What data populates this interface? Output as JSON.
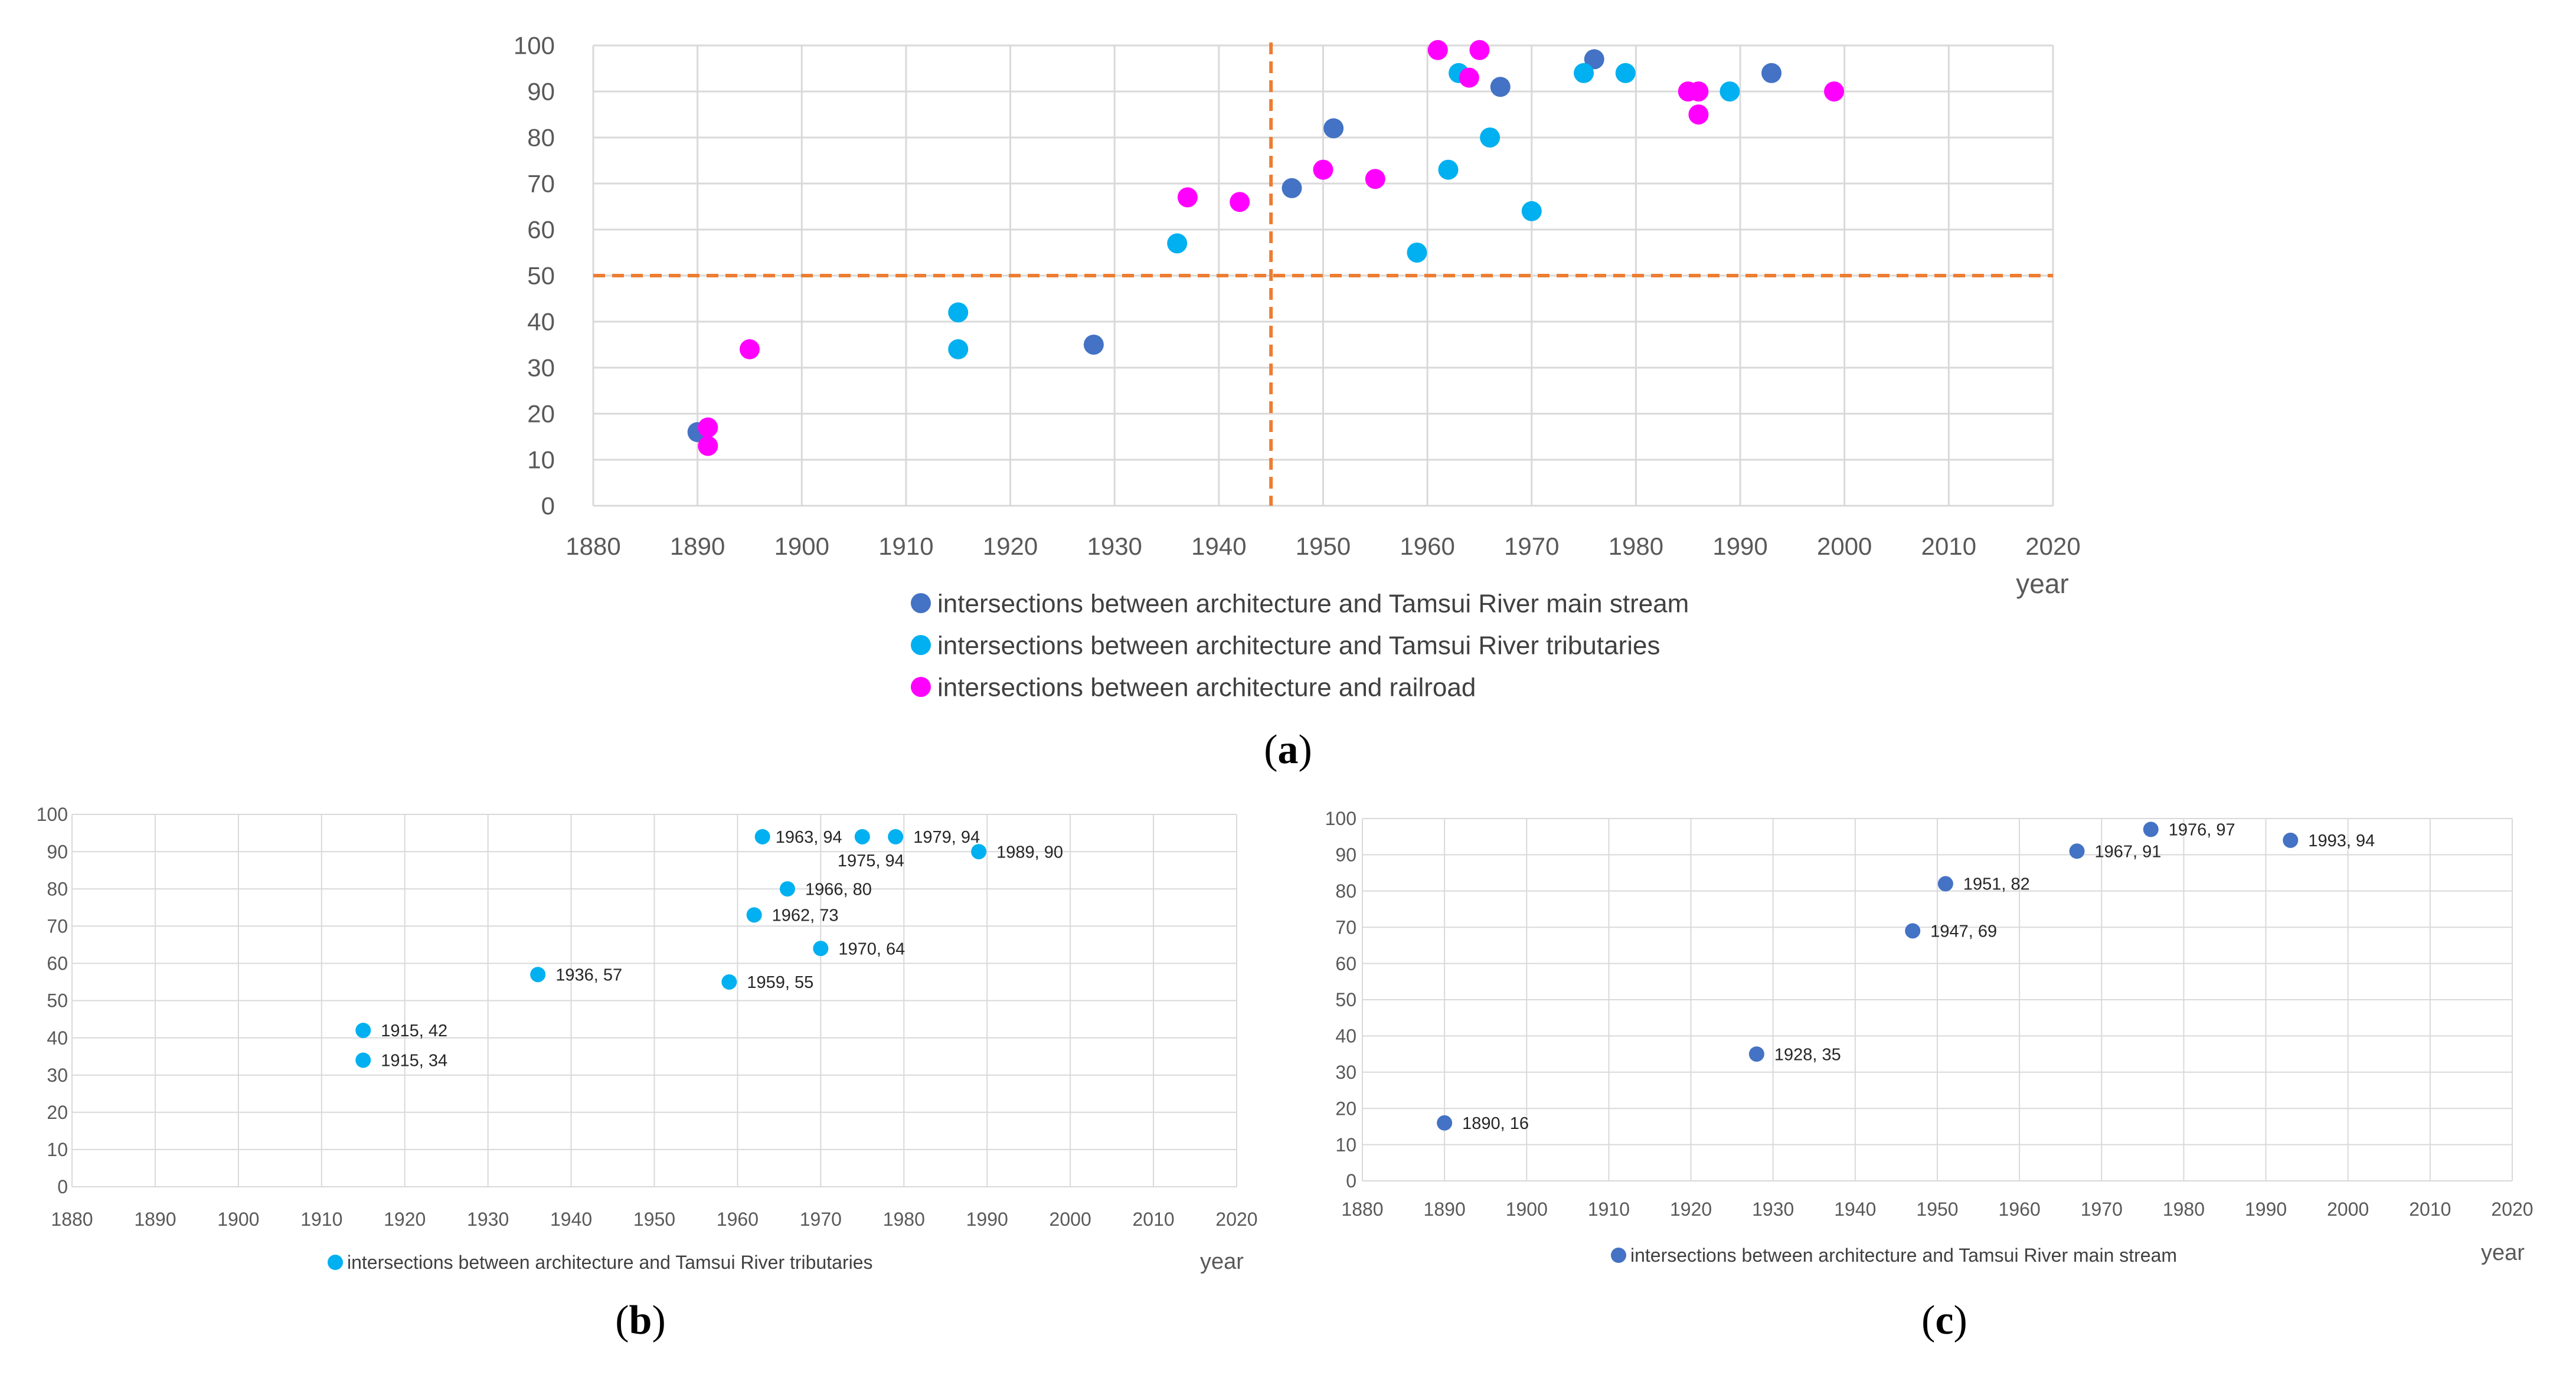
{
  "figure": {
    "charts": {
      "a": {
        "caption_letter": "a"
      },
      "b": {
        "caption_letter": "b"
      },
      "c": {
        "caption_letter": "c"
      }
    }
  },
  "chart_data": [
    {
      "id": "a",
      "type": "scatter",
      "xlim": [
        1880,
        2020
      ],
      "ylim": [
        0,
        100
      ],
      "xticks": [
        "1880",
        "1890",
        "1900",
        "1910",
        "1920",
        "1930",
        "1940",
        "1950",
        "1960",
        "1970",
        "1980",
        "1990",
        "2000",
        "2010",
        "2020"
      ],
      "yticks": [
        "0",
        "10",
        "20",
        "30",
        "40",
        "50",
        "60",
        "70",
        "80",
        "90",
        "100"
      ],
      "xlabel": "year",
      "grid": true,
      "legend_position": "bottom",
      "reference_lines": {
        "x": 1945,
        "y": 50,
        "color": "#ED7D31",
        "style": "dashed"
      },
      "series": [
        {
          "name": "intersections between architecture and Tamsui River main stream",
          "color": "#4472C4",
          "points": [
            [
              1890,
              16
            ],
            [
              1928,
              35
            ],
            [
              1947,
              69
            ],
            [
              1951,
              82
            ],
            [
              1967,
              91
            ],
            [
              1976,
              97
            ],
            [
              1993,
              94
            ]
          ]
        },
        {
          "name": "intersections between architecture and Tamsui River tributaries",
          "color": "#00B0F0",
          "points": [
            [
              1915,
              42
            ],
            [
              1915,
              34
            ],
            [
              1936,
              57
            ],
            [
              1959,
              55
            ],
            [
              1962,
              73
            ],
            [
              1963,
              94
            ],
            [
              1966,
              80
            ],
            [
              1970,
              64
            ],
            [
              1975,
              94
            ],
            [
              1979,
              94
            ],
            [
              1989,
              90
            ]
          ]
        },
        {
          "name": "intersections between architecture and railroad",
          "color": "#FF00FF",
          "points": [
            [
              1891,
              17
            ],
            [
              1891,
              13
            ],
            [
              1895,
              34
            ],
            [
              1937,
              67
            ],
            [
              1942,
              66
            ],
            [
              1950,
              73
            ],
            [
              1955,
              71
            ],
            [
              1961,
              99
            ],
            [
              1964,
              93
            ],
            [
              1965,
              99
            ],
            [
              1985,
              90
            ],
            [
              1986,
              90
            ],
            [
              1986,
              85
            ],
            [
              1999,
              90
            ]
          ]
        }
      ]
    },
    {
      "id": "b",
      "type": "scatter",
      "xlim": [
        1880,
        2020
      ],
      "ylim": [
        0,
        100
      ],
      "xticks": [
        "1880",
        "1890",
        "1900",
        "1910",
        "1920",
        "1930",
        "1940",
        "1950",
        "1960",
        "1970",
        "1980",
        "1990",
        "2000",
        "2010",
        "2020"
      ],
      "yticks": [
        "0",
        "10",
        "20",
        "30",
        "40",
        "50",
        "60",
        "70",
        "80",
        "90",
        "100"
      ],
      "xlabel": "year",
      "grid": true,
      "legend_position": "bottom",
      "series": [
        {
          "name": "intersections between architecture and Tamsui River tributaries",
          "color": "#00B0F0",
          "points": [
            [
              1915,
              42
            ],
            [
              1915,
              34
            ],
            [
              1936,
              57
            ],
            [
              1959,
              55
            ],
            [
              1962,
              73
            ],
            [
              1963,
              94
            ],
            [
              1966,
              80
            ],
            [
              1970,
              64
            ],
            [
              1975,
              94
            ],
            [
              1979,
              94
            ],
            [
              1989,
              90
            ]
          ],
          "labels": [
            "1915, 42",
            "1915, 34",
            "1936, 57",
            "1959, 55",
            "1962, 73",
            "1963, 94",
            "1966, 80",
            "1970, 64",
            "1975, 94",
            "1979, 94",
            "1989, 90"
          ]
        }
      ]
    },
    {
      "id": "c",
      "type": "scatter",
      "xlim": [
        1880,
        2020
      ],
      "ylim": [
        0,
        100
      ],
      "xticks": [
        "1880",
        "1890",
        "1900",
        "1910",
        "1920",
        "1930",
        "1940",
        "1950",
        "1960",
        "1970",
        "1980",
        "1990",
        "2000",
        "2010",
        "2020"
      ],
      "yticks": [
        "0",
        "10",
        "20",
        "30",
        "40",
        "50",
        "60",
        "70",
        "80",
        "90",
        "100"
      ],
      "xlabel": "year",
      "grid": true,
      "legend_position": "bottom",
      "series": [
        {
          "name": "intersections between architecture and Tamsui River main stream",
          "color": "#4472C4",
          "points": [
            [
              1890,
              16
            ],
            [
              1928,
              35
            ],
            [
              1947,
              69
            ],
            [
              1951,
              82
            ],
            [
              1967,
              91
            ],
            [
              1976,
              97
            ],
            [
              1993,
              94
            ]
          ],
          "labels": [
            "1890, 16",
            "1928, 35",
            "1947, 69",
            "1951, 82",
            "1967, 91",
            "1976, 97",
            "1993, 94"
          ]
        }
      ]
    }
  ]
}
